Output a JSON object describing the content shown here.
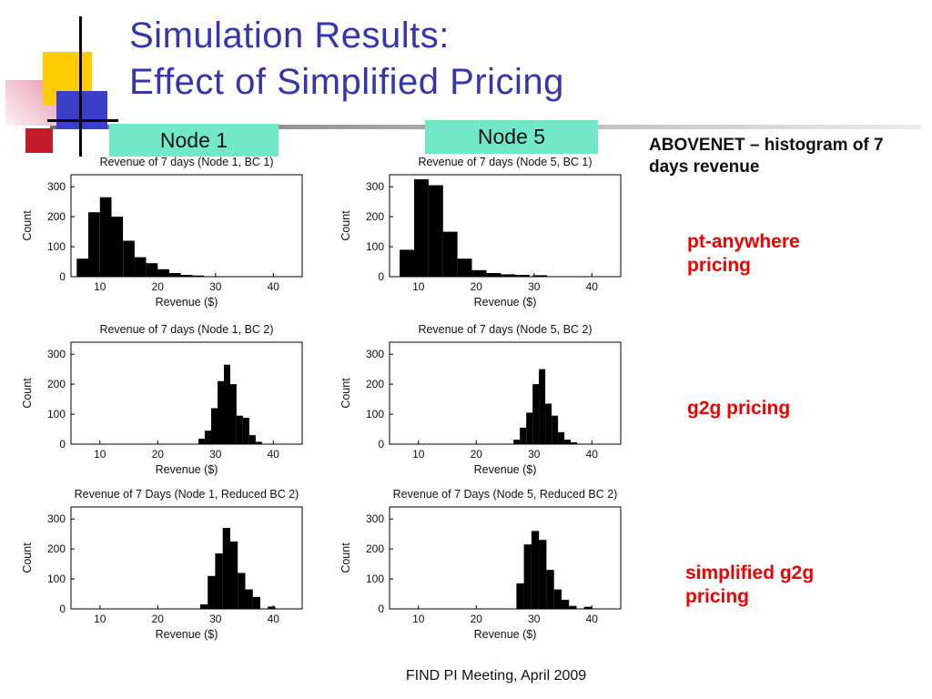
{
  "slide": {
    "title_line1": "Simulation Results:",
    "title_line2": "Effect of Simplified Pricing",
    "footer": "FIND PI Meeting, April 2009"
  },
  "node_labels": {
    "node1": "Node 1",
    "node5": "Node 5"
  },
  "annotation": {
    "text": "ABOVENET – histogram of 7 days revenue"
  },
  "pricing_labels": {
    "row1": "pt-anywhere pricing",
    "row2": "g2g pricing",
    "row3": "simplified g2g pricing"
  },
  "colors": {
    "title": "#3535ad",
    "node_box": "#71e8c8",
    "pricing_label": "#ee0000",
    "bar": "#000000"
  },
  "chart_data": [
    {
      "type": "bar",
      "title": "Revenue of 7 days (Node 1, BC 1)",
      "xlabel": "Revenue ($)",
      "ylabel": "Count",
      "xlim": [
        5,
        45
      ],
      "ylim": [
        0,
        340
      ],
      "x_ticks": [
        10,
        20,
        30,
        40
      ],
      "y_ticks": [
        0,
        100,
        200,
        300
      ],
      "bin_width": 2,
      "x": [
        7,
        9,
        11,
        13,
        15,
        17,
        19,
        21,
        23,
        25,
        27
      ],
      "counts": [
        60,
        215,
        265,
        200,
        120,
        65,
        45,
        25,
        12,
        6,
        4
      ]
    },
    {
      "type": "bar",
      "title": "Revenue of 7 days (Node 5, BC 1)",
      "xlabel": "Revenue ($)",
      "ylabel": "Count",
      "xlim": [
        5,
        45
      ],
      "ylim": [
        0,
        340
      ],
      "x_ticks": [
        10,
        20,
        30,
        40
      ],
      "y_ticks": [
        0,
        100,
        200,
        300
      ],
      "bin_width": 2.5,
      "x": [
        8,
        10.5,
        13,
        15.5,
        18,
        20.5,
        23,
        25.5,
        28,
        31
      ],
      "counts": [
        90,
        325,
        305,
        150,
        60,
        22,
        12,
        8,
        6,
        5
      ]
    },
    {
      "type": "bar",
      "title": "Revenue of 7 days (Node 1, BC 2)",
      "xlabel": "Revenue ($)",
      "ylabel": "Count",
      "xlim": [
        5,
        45
      ],
      "ylim": [
        0,
        340
      ],
      "x_ticks": [
        10,
        20,
        30,
        40
      ],
      "y_ticks": [
        0,
        100,
        200,
        300
      ],
      "bin_width": 1.1,
      "x": [
        27.6,
        28.7,
        29.8,
        30.9,
        32.0,
        33.1,
        34.2,
        35.3,
        36.4,
        37.5
      ],
      "counts": [
        18,
        45,
        120,
        210,
        265,
        200,
        95,
        88,
        30,
        8
      ]
    },
    {
      "type": "bar",
      "title": "Revenue of 7 days (Node 5, BC 2)",
      "xlabel": "Revenue ($)",
      "ylabel": "Count",
      "xlim": [
        5,
        45
      ],
      "ylim": [
        0,
        340
      ],
      "x_ticks": [
        10,
        20,
        30,
        40
      ],
      "y_ticks": [
        0,
        100,
        200,
        300
      ],
      "bin_width": 1.1,
      "x": [
        27.0,
        28.1,
        29.2,
        30.3,
        31.4,
        32.5,
        33.6,
        34.7,
        35.8,
        36.9
      ],
      "counts": [
        15,
        55,
        105,
        200,
        250,
        135,
        95,
        40,
        15,
        6
      ]
    },
    {
      "type": "bar",
      "title": "Revenue of 7 Days (Node 1, Reduced BC 2)",
      "xlabel": "Revenue ($)",
      "ylabel": "Count",
      "xlim": [
        5,
        45
      ],
      "ylim": [
        0,
        340
      ],
      "x_ticks": [
        10,
        20,
        30,
        40
      ],
      "y_ticks": [
        0,
        100,
        200,
        300
      ],
      "bin_width": 1.3,
      "x": [
        28.0,
        29.3,
        30.6,
        31.9,
        33.2,
        34.5,
        35.8,
        37.1,
        39.7
      ],
      "counts": [
        15,
        110,
        185,
        270,
        225,
        120,
        65,
        40,
        8
      ]
    },
    {
      "type": "bar",
      "title": "Revenue of 7 Days (Node 5, Reduced BC 2)",
      "xlabel": "Revenue ($)",
      "ylabel": "Count",
      "xlim": [
        5,
        45
      ],
      "ylim": [
        0,
        340
      ],
      "x_ticks": [
        10,
        20,
        30,
        40
      ],
      "y_ticks": [
        0,
        100,
        200,
        300
      ],
      "bin_width": 1.3,
      "x": [
        27.6,
        28.9,
        30.2,
        31.5,
        32.8,
        34.1,
        35.4,
        36.7,
        39.3
      ],
      "counts": [
        85,
        215,
        260,
        230,
        130,
        65,
        30,
        10,
        7
      ]
    }
  ]
}
